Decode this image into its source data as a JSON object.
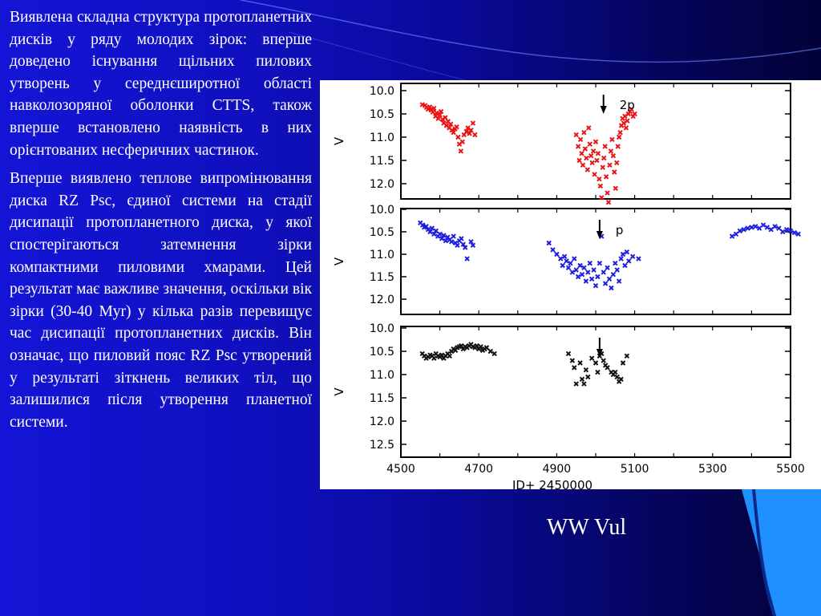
{
  "slide": {
    "paragraphs": [
      "Виявлена складна структура протопланетних дисків у ряду молодих зірок: вперше доведено існування щільних пилових утворень у середнєширотної області навколозоряної оболонки CTTS, також вперше встановлено наявність в них орієнтованих несферичних частинок.",
      "Вперше виявлено теплове випромінювання диска RZ Psc, єдиної системи на стадії дисипації протопланетного диска, у якої спостерігаються затемнення зірки компактними пиловими хмарами. Цей результат має важливе значення, оскільки вік зірки (30-40 Myr) у кілька разів перевищує час дисипації протопланетних дисків. Він означає, що пиловий пояс RZ Psc утворений у результаті зіткнень великих тіл, що залишилися після утворення планетної системи."
    ],
    "caption": "WW Vul",
    "colors": {
      "background_left": "#1414d6",
      "background_right": "#020238",
      "accent_light_blue": "#1e90ff",
      "text": "#ffffff",
      "panel_background": "#ffffff"
    }
  },
  "chart_data": [
    {
      "type": "scatter",
      "title": "",
      "xlabel": "",
      "ylabel": "V",
      "xlim": [
        4500,
        5500
      ],
      "ylim": [
        10.0,
        12.2
      ],
      "y_inverted": true,
      "yticks": [
        "10.0",
        "10.5",
        "11.0",
        "11.5",
        "12.0"
      ],
      "series_color": "#e81414",
      "annotation": {
        "text": "2p",
        "x": 5020,
        "arrow": true
      },
      "series": [
        {
          "values": [
            [
              4555,
              10.3
            ],
            [
              4562,
              10.32
            ],
            [
              4566,
              10.36
            ],
            [
              4570,
              10.4
            ],
            [
              4574,
              10.35
            ],
            [
              4578,
              10.42
            ],
            [
              4582,
              10.46
            ],
            [
              4585,
              10.38
            ],
            [
              4589,
              10.55
            ],
            [
              4592,
              10.48
            ],
            [
              4596,
              10.6
            ],
            [
              4600,
              10.52
            ],
            [
              4603,
              10.45
            ],
            [
              4607,
              10.62
            ],
            [
              4610,
              10.7
            ],
            [
              4614,
              10.58
            ],
            [
              4617,
              10.75
            ],
            [
              4621,
              10.66
            ],
            [
              4624,
              10.8
            ],
            [
              4628,
              10.72
            ],
            [
              4631,
              10.85
            ],
            [
              4635,
              10.9
            ],
            [
              4639,
              10.82
            ],
            [
              4643,
              10.78
            ],
            [
              4647,
              11.0
            ],
            [
              4650,
              11.15
            ],
            [
              4654,
              11.3
            ],
            [
              4658,
              11.1
            ],
            [
              4662,
              10.95
            ],
            [
              4668,
              10.88
            ],
            [
              4672,
              10.8
            ],
            [
              4676,
              10.92
            ],
            [
              4680,
              10.85
            ],
            [
              4685,
              10.7
            ],
            [
              4690,
              10.95
            ],
            [
              4950,
              10.95
            ],
            [
              4955,
              11.2
            ],
            [
              4958,
              11.5
            ],
            [
              4961,
              11.05
            ],
            [
              4964,
              11.35
            ],
            [
              4967,
              11.6
            ],
            [
              4970,
              10.9
            ],
            [
              4973,
              11.25
            ],
            [
              4976,
              11.45
            ],
            [
              4979,
              11.7
            ],
            [
              4982,
              10.8
            ],
            [
              4985,
              11.15
            ],
            [
              4988,
              11.4
            ],
            [
              4991,
              11.55
            ],
            [
              4994,
              11.3
            ],
            [
              4997,
              11.8
            ],
            [
              5000,
              11.1
            ],
            [
              5003,
              11.5
            ],
            [
              5006,
              11.35
            ],
            [
              5009,
              11.9
            ],
            [
              5012,
              12.05
            ],
            [
              5015,
              12.3
            ],
            [
              5018,
              11.65
            ],
            [
              5021,
              11.45
            ],
            [
              5024,
              11.2
            ],
            [
              5027,
              11.85
            ],
            [
              5030,
              12.2
            ],
            [
              5033,
              12.4
            ],
            [
              5036,
              11.6
            ],
            [
              5039,
              11.3
            ],
            [
              5042,
              11.05
            ],
            [
              5045,
              11.4
            ],
            [
              5048,
              11.75
            ],
            [
              5051,
              12.1
            ],
            [
              5054,
              11.55
            ],
            [
              5057,
              11.2
            ],
            [
              5060,
              11.0
            ],
            [
              5063,
              10.9
            ],
            [
              5066,
              10.75
            ],
            [
              5069,
              10.6
            ],
            [
              5072,
              10.7
            ],
            [
              5075,
              10.55
            ],
            [
              5078,
              10.8
            ],
            [
              5081,
              10.65
            ],
            [
              5084,
              10.5
            ],
            [
              5088,
              10.45
            ],
            [
              5092,
              10.4
            ],
            [
              5096,
              10.55
            ],
            [
              5100,
              10.5
            ]
          ]
        }
      ]
    },
    {
      "type": "scatter",
      "title": "",
      "xlabel": "",
      "ylabel": "V",
      "xlim": [
        4500,
        5500
      ],
      "ylim": [
        10.0,
        12.2
      ],
      "y_inverted": true,
      "yticks": [
        "10.0",
        "10.5",
        "11.0",
        "11.5",
        "12.0"
      ],
      "series_color": "#1c1ce0",
      "annotation": {
        "text": "p",
        "x": 5010,
        "arrow": true
      },
      "series": [
        {
          "values": [
            [
              4550,
              10.3
            ],
            [
              4556,
              10.35
            ],
            [
              4560,
              10.4
            ],
            [
              4565,
              10.38
            ],
            [
              4570,
              10.45
            ],
            [
              4575,
              10.5
            ],
            [
              4580,
              10.42
            ],
            [
              4585,
              10.55
            ],
            [
              4590,
              10.48
            ],
            [
              4595,
              10.6
            ],
            [
              4600,
              10.55
            ],
            [
              4605,
              10.65
            ],
            [
              4610,
              10.58
            ],
            [
              4615,
              10.7
            ],
            [
              4620,
              10.62
            ],
            [
              4625,
              10.68
            ],
            [
              4630,
              10.72
            ],
            [
              4635,
              10.6
            ],
            [
              4640,
              10.75
            ],
            [
              4645,
              10.8
            ],
            [
              4650,
              10.7
            ],
            [
              4655,
              10.65
            ],
            [
              4660,
              10.78
            ],
            [
              4665,
              10.85
            ],
            [
              4670,
              11.1
            ],
            [
              4680,
              10.72
            ],
            [
              4685,
              10.8
            ],
            [
              4880,
              10.75
            ],
            [
              4890,
              10.9
            ],
            [
              4900,
              11.0
            ],
            [
              4910,
              11.1
            ],
            [
              4915,
              11.25
            ],
            [
              4920,
              11.05
            ],
            [
              4925,
              11.15
            ],
            [
              4930,
              11.3
            ],
            [
              4935,
              11.2
            ],
            [
              4940,
              11.4
            ],
            [
              4945,
              11.1
            ],
            [
              4950,
              11.35
            ],
            [
              4955,
              11.5
            ],
            [
              4960,
              11.25
            ],
            [
              4965,
              11.45
            ],
            [
              4970,
              11.3
            ],
            [
              4975,
              11.6
            ],
            [
              4980,
              11.4
            ],
            [
              4985,
              11.2
            ],
            [
              4990,
              11.55
            ],
            [
              4995,
              11.35
            ],
            [
              5000,
              11.7
            ],
            [
              5005,
              11.5
            ],
            [
              5010,
              11.2
            ],
            [
              5015,
              10.6
            ],
            [
              5020,
              11.4
            ],
            [
              5025,
              11.65
            ],
            [
              5030,
              11.3
            ],
            [
              5035,
              11.55
            ],
            [
              5040,
              11.75
            ],
            [
              5045,
              11.45
            ],
            [
              5050,
              11.2
            ],
            [
              5055,
              11.35
            ],
            [
              5060,
              11.6
            ],
            [
              5065,
              11.1
            ],
            [
              5070,
              11.0
            ],
            [
              5075,
              11.25
            ],
            [
              5080,
              10.95
            ],
            [
              5085,
              11.15
            ],
            [
              5095,
              11.05
            ],
            [
              5110,
              11.1
            ],
            [
              5350,
              10.6
            ],
            [
              5360,
              10.55
            ],
            [
              5370,
              10.48
            ],
            [
              5380,
              10.45
            ],
            [
              5390,
              10.42
            ],
            [
              5400,
              10.4
            ],
            [
              5410,
              10.38
            ],
            [
              5420,
              10.42
            ],
            [
              5430,
              10.35
            ],
            [
              5440,
              10.4
            ],
            [
              5450,
              10.45
            ],
            [
              5460,
              10.38
            ],
            [
              5470,
              10.42
            ],
            [
              5480,
              10.5
            ],
            [
              5490,
              10.45
            ],
            [
              5500,
              10.48
            ],
            [
              5510,
              10.52
            ],
            [
              5520,
              10.55
            ]
          ]
        }
      ]
    },
    {
      "type": "scatter",
      "title": "",
      "xlabel": "JD+ 2450000",
      "ylabel": "V",
      "xlim": [
        4500,
        5500
      ],
      "ylim": [
        10.0,
        12.5
      ],
      "y_inverted": true,
      "yticks": [
        "10.0",
        "10.5",
        "11.0",
        "11.5",
        "12.0",
        "12.5"
      ],
      "xticks": [
        "4500",
        "4700",
        "4900",
        "5100",
        "5300",
        "5500"
      ],
      "series_color": "#111111",
      "annotation": {
        "text": "",
        "x": 5010,
        "arrow": true
      },
      "series": [
        {
          "values": [
            [
              4555,
              10.55
            ],
            [
              4560,
              10.6
            ],
            [
              4565,
              10.65
            ],
            [
              4570,
              10.62
            ],
            [
              4575,
              10.58
            ],
            [
              4580,
              10.6
            ],
            [
              4585,
              10.65
            ],
            [
              4590,
              10.55
            ],
            [
              4595,
              10.6
            ],
            [
              4600,
              10.62
            ],
            [
              4605,
              10.58
            ],
            [
              4610,
              10.65
            ],
            [
              4615,
              10.6
            ],
            [
              4620,
              10.55
            ],
            [
              4625,
              10.6
            ],
            [
              4630,
              10.5
            ],
            [
              4635,
              10.45
            ],
            [
              4640,
              10.48
            ],
            [
              4645,
              10.42
            ],
            [
              4650,
              10.4
            ],
            [
              4655,
              10.38
            ],
            [
              4660,
              10.45
            ],
            [
              4665,
              10.4
            ],
            [
              4670,
              10.42
            ],
            [
              4675,
              10.38
            ],
            [
              4680,
              10.35
            ],
            [
              4685,
              10.4
            ],
            [
              4690,
              10.42
            ],
            [
              4695,
              10.38
            ],
            [
              4700,
              10.45
            ],
            [
              4705,
              10.4
            ],
            [
              4710,
              10.48
            ],
            [
              4715,
              10.45
            ],
            [
              4720,
              10.42
            ],
            [
              4730,
              10.5
            ],
            [
              4740,
              10.55
            ],
            [
              4930,
              10.55
            ],
            [
              4940,
              10.7
            ],
            [
              4945,
              10.85
            ],
            [
              4950,
              11.2
            ],
            [
              4960,
              10.75
            ],
            [
              4965,
              11.1
            ],
            [
              4970,
              11.2
            ],
            [
              4975,
              10.9
            ],
            [
              4980,
              11.05
            ],
            [
              4990,
              10.65
            ],
            [
              5000,
              10.75
            ],
            [
              5005,
              10.95
            ],
            [
              5010,
              10.6
            ],
            [
              5015,
              10.55
            ],
            [
              5020,
              10.7
            ],
            [
              5025,
              10.8
            ],
            [
              5030,
              10.85
            ],
            [
              5040,
              10.95
            ],
            [
              5045,
              11.0
            ],
            [
              5050,
              10.95
            ],
            [
              5055,
              11.05
            ],
            [
              5060,
              11.15
            ],
            [
              5065,
              11.1
            ],
            [
              5070,
              10.75
            ],
            [
              5080,
              10.6
            ]
          ]
        }
      ]
    }
  ]
}
